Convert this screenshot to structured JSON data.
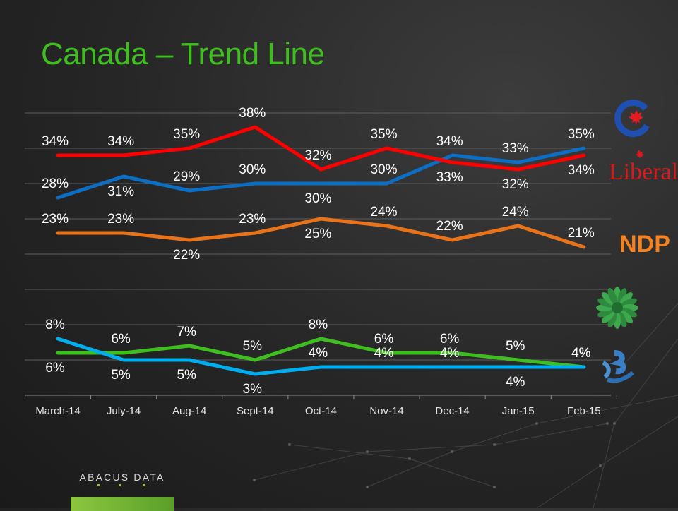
{
  "page": {
    "title": "Canada – Trend Line",
    "title_color": "#3fbf1f",
    "brand": "ABACUS DATA",
    "brand_color": "#8cc63f"
  },
  "chart_data": {
    "type": "line",
    "title": "Canada – Trend Line",
    "categories": [
      "March-14",
      "July-14",
      "Aug-14",
      "Sept-14",
      "Oct-14",
      "Nov-14",
      "Dec-14",
      "Jan-15",
      "Feb-15"
    ],
    "ylim": [
      0,
      40
    ],
    "grid": true,
    "legend": "right (party logos)",
    "series": [
      {
        "name": "Liberal",
        "color": "#ff0000",
        "values": [
          34,
          34,
          35,
          38,
          32,
          35,
          33,
          32,
          34
        ],
        "logo": "liberal-logo",
        "logo_text": "Liberal"
      },
      {
        "name": "",
        "color": "#0d6fc4",
        "values": [
          28,
          31,
          29,
          30,
          30,
          30,
          34,
          33,
          35
        ],
        "logo": "conservative-logo"
      },
      {
        "name": "NDP",
        "color": "#e8731a",
        "values": [
          23,
          23,
          22,
          23,
          25,
          24,
          22,
          24,
          21
        ],
        "logo": "ndp-logo",
        "logo_text": "NDP"
      },
      {
        "name": "",
        "color": "#00aeef",
        "values": [
          8,
          5,
          5,
          3,
          4,
          4,
          4,
          4,
          4
        ],
        "logo": "bloc-logo"
      },
      {
        "name": "",
        "color": "#3fbf1f",
        "values": [
          6,
          6,
          7,
          5,
          8,
          6,
          6,
          5,
          4
        ],
        "logo": "green-logo"
      }
    ],
    "data_labels": [
      {
        "series": 0,
        "labels": [
          "34%",
          "34%",
          "35%",
          "38%",
          "32%",
          "35%",
          "33%",
          "32%",
          "34%"
        ],
        "pos": [
          "above",
          "above",
          "above",
          "above",
          "above",
          "above",
          "below",
          "below",
          "below"
        ]
      },
      {
        "series": 1,
        "labels": [
          "28%",
          "31%",
          "29%",
          "30%",
          "30%",
          "30%",
          "34%",
          "33%",
          "35%"
        ],
        "pos": [
          "above",
          "below",
          "above",
          "above",
          "below",
          "above",
          "above",
          "above",
          "above"
        ]
      },
      {
        "series": 2,
        "labels": [
          "23%",
          "23%",
          "22%",
          "23%",
          "25%",
          "24%",
          "22%",
          "24%",
          "21%"
        ],
        "pos": [
          "above",
          "above",
          "below",
          "above",
          "below",
          "above",
          "above",
          "above",
          "above"
        ]
      },
      {
        "series": 3,
        "labels": [
          "8%",
          "5%",
          "5%",
          "3%",
          "4%",
          "4%",
          "4%",
          "4%",
          "4%"
        ],
        "pos": [
          "above",
          "below",
          "below",
          "below",
          "above",
          "above",
          "above",
          "below",
          "above"
        ]
      },
      {
        "series": 4,
        "labels": [
          "6%",
          "6%",
          "7%",
          "5%",
          "8%",
          "6%",
          "6%",
          "5%",
          "4%"
        ],
        "pos": [
          "below",
          "above",
          "above",
          "above",
          "above",
          "above",
          "above",
          "above",
          "above"
        ]
      }
    ]
  }
}
